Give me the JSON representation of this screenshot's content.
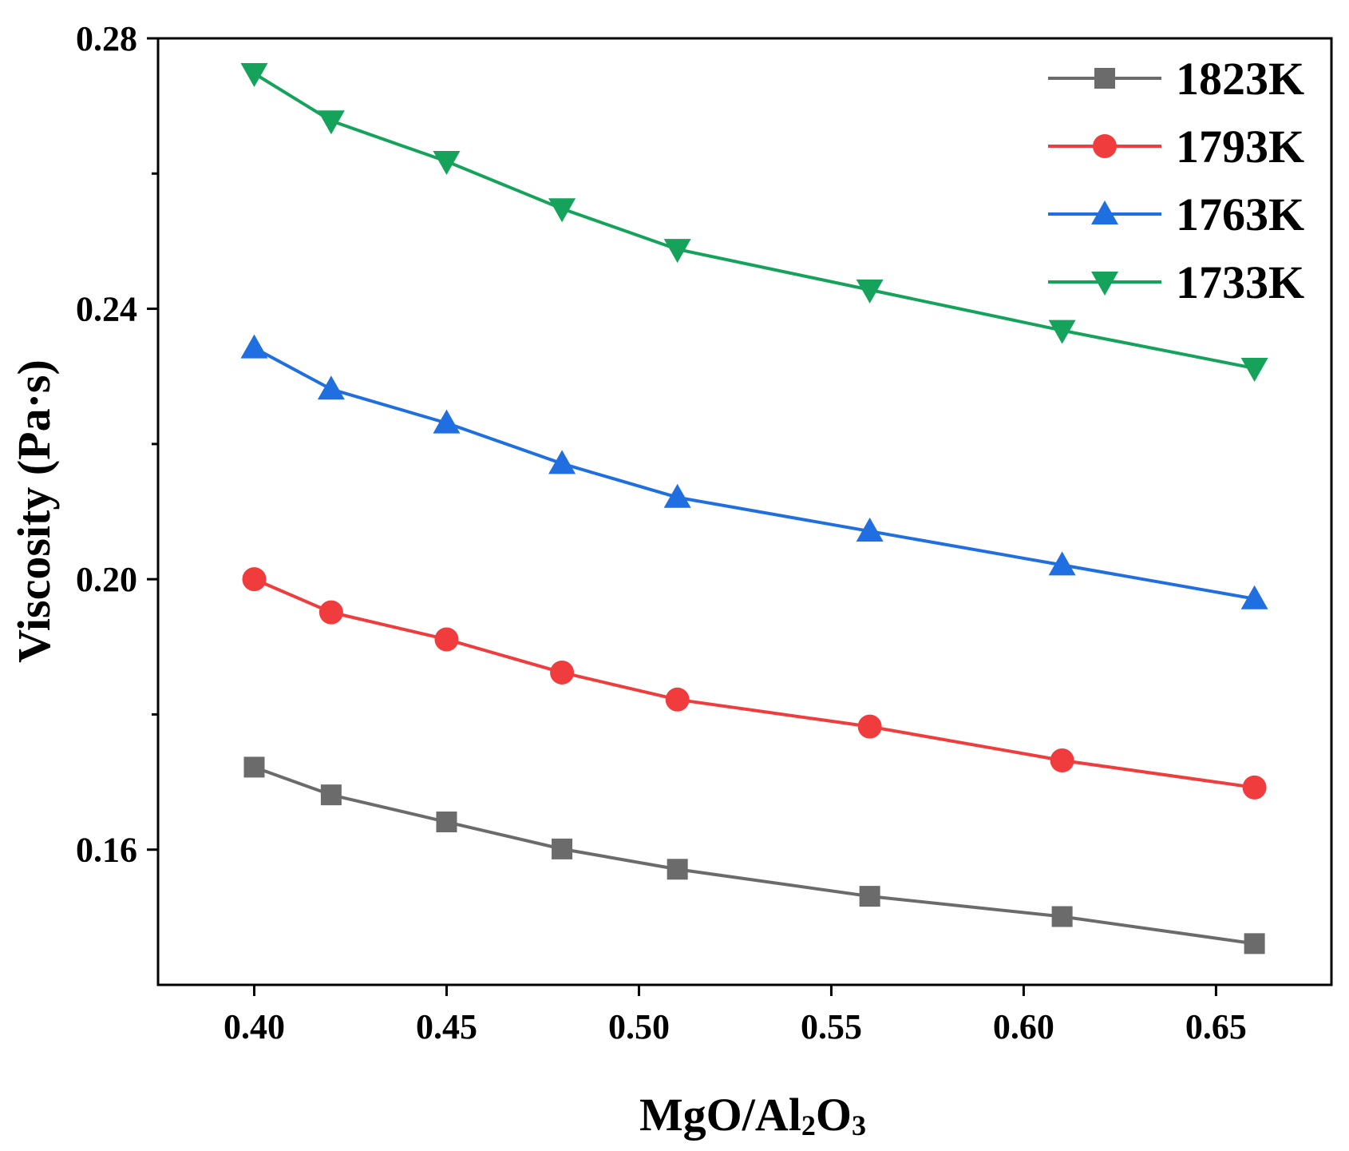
{
  "chart_data": {
    "type": "line",
    "title": "",
    "xlabel": "MgO/Al2O3",
    "xlabel_parts": {
      "a": "MgO/Al",
      "s1": "2",
      "b": "O",
      "s2": "3"
    },
    "ylabel": "Viscosity (Pa·s)",
    "xlim": [
      0.375,
      0.68
    ],
    "ylim": [
      0.14,
      0.28
    ],
    "xticks": [
      0.4,
      0.45,
      0.5,
      0.55,
      0.6,
      0.65
    ],
    "xtick_labels": [
      "0.40",
      "0.45",
      "0.50",
      "0.55",
      "0.60",
      "0.65"
    ],
    "yticks": [
      0.16,
      0.2,
      0.24,
      0.28
    ],
    "ytick_labels": [
      "0.16",
      "0.20",
      "0.24",
      "0.28"
    ],
    "yminor_ticks": [
      0.18,
      0.22,
      0.26
    ],
    "grid": false,
    "legend_position": "top-right",
    "x": [
      0.4,
      0.42,
      0.45,
      0.48,
      0.51,
      0.56,
      0.61,
      0.66
    ],
    "series": [
      {
        "name": "1823K",
        "color": "#6b6b6b",
        "marker": "square",
        "values": [
          0.1722,
          0.1681,
          0.1641,
          0.1601,
          0.1571,
          0.1531,
          0.1501,
          0.1461
        ]
      },
      {
        "name": "1793K",
        "color": "#f03c3c",
        "marker": "circle",
        "values": [
          0.2,
          0.1951,
          0.1911,
          0.1862,
          0.1822,
          0.1782,
          0.1732,
          0.1692
        ]
      },
      {
        "name": "1763K",
        "color": "#1f6fe0",
        "marker": "triangle-up",
        "values": [
          0.2342,
          0.2281,
          0.2231,
          0.2171,
          0.2121,
          0.2071,
          0.2021,
          0.1971
        ]
      },
      {
        "name": "1733K",
        "color": "#15a35c",
        "marker": "triangle-down",
        "values": [
          0.2748,
          0.2678,
          0.2618,
          0.2548,
          0.2488,
          0.2428,
          0.2368,
          0.2312
        ]
      }
    ]
  }
}
